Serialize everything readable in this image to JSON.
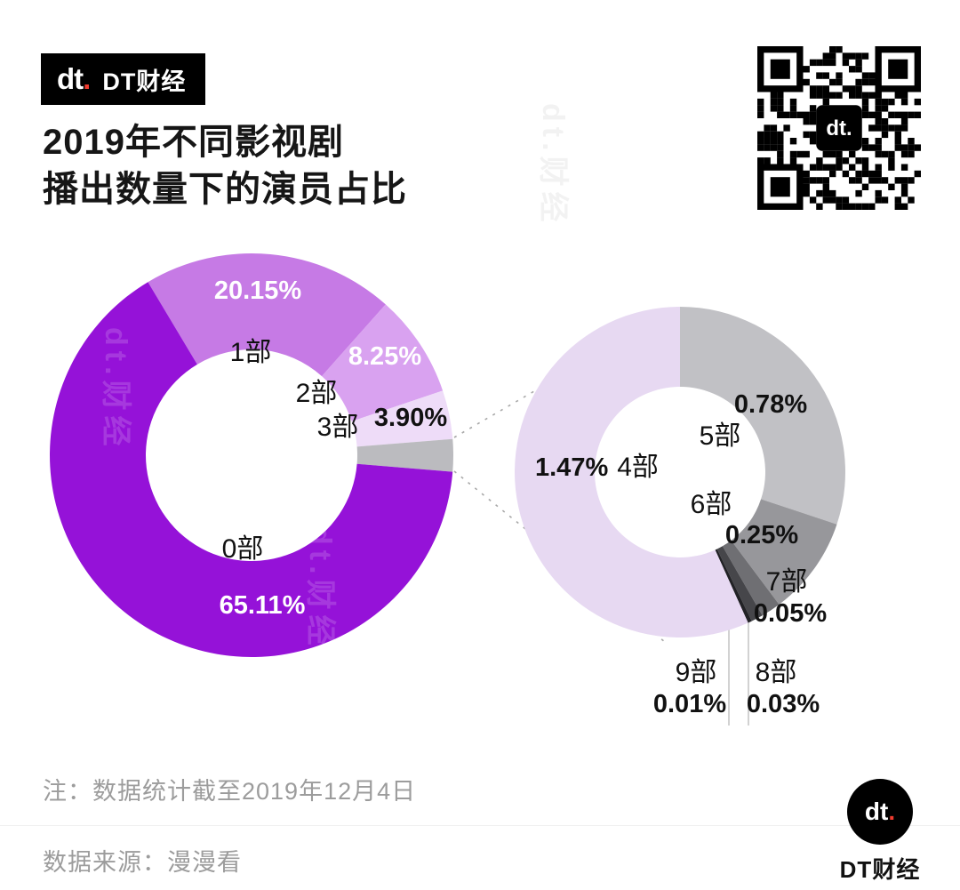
{
  "brand": {
    "accent_red": "#f03b2f",
    "purple": "#9512d8"
  },
  "header": {
    "logo_text": "dt",
    "logo_dot": ".",
    "brand": "DT财经"
  },
  "title": {
    "line1": "2019年不同影视剧",
    "line2": "播出数量下的演员占比"
  },
  "watermark": "dt.财经",
  "chart_data": {
    "type": "pie",
    "title": "2019年不同影视剧播出数量下的演员占比",
    "legend_position": "none",
    "main_donut": {
      "total": 100,
      "start_angle": -30.9,
      "slices": [
        {
          "category": "1部",
          "value": 20.15,
          "pct": "20.15%",
          "color": "#c67ae5"
        },
        {
          "category": "2部",
          "value": 8.25,
          "pct": "8.25%",
          "color": "#d9a2f0"
        },
        {
          "category": "3部",
          "value": 3.9,
          "pct": "3.90%",
          "color": "#eedcf8"
        },
        {
          "category": "",
          "value": 2.59,
          "pct": "",
          "color": "#bbbbbf"
        },
        {
          "category": "0部",
          "value": 65.11,
          "pct": "65.11%",
          "color": "#9512d8"
        }
      ]
    },
    "detail_donut": {
      "total": 2.59,
      "start_angle": 0,
      "slices": [
        {
          "category": "5部",
          "value": 0.78,
          "pct": "0.78%",
          "color": "#c1c1c5"
        },
        {
          "category": "6部",
          "value": 0.25,
          "pct": "0.25%",
          "color": "#97979b"
        },
        {
          "category": "7部",
          "value": 0.05,
          "pct": "0.05%",
          "color": "#6f6f73"
        },
        {
          "category": "8部",
          "value": 0.03,
          "pct": "0.03%",
          "color": "#46464a"
        },
        {
          "category": "9部",
          "value": 0.01,
          "pct": "0.01%",
          "color": "#222226"
        },
        {
          "category": "4部",
          "value": 1.47,
          "pct": "1.47%",
          "color": "#e7d9f2"
        }
      ]
    }
  },
  "footer": {
    "note": "注：数据统计截至2019年12月4日",
    "source": "数据来源：漫漫看",
    "logo_text": "dt",
    "logo_dot": ".",
    "brand": "DT财经"
  }
}
